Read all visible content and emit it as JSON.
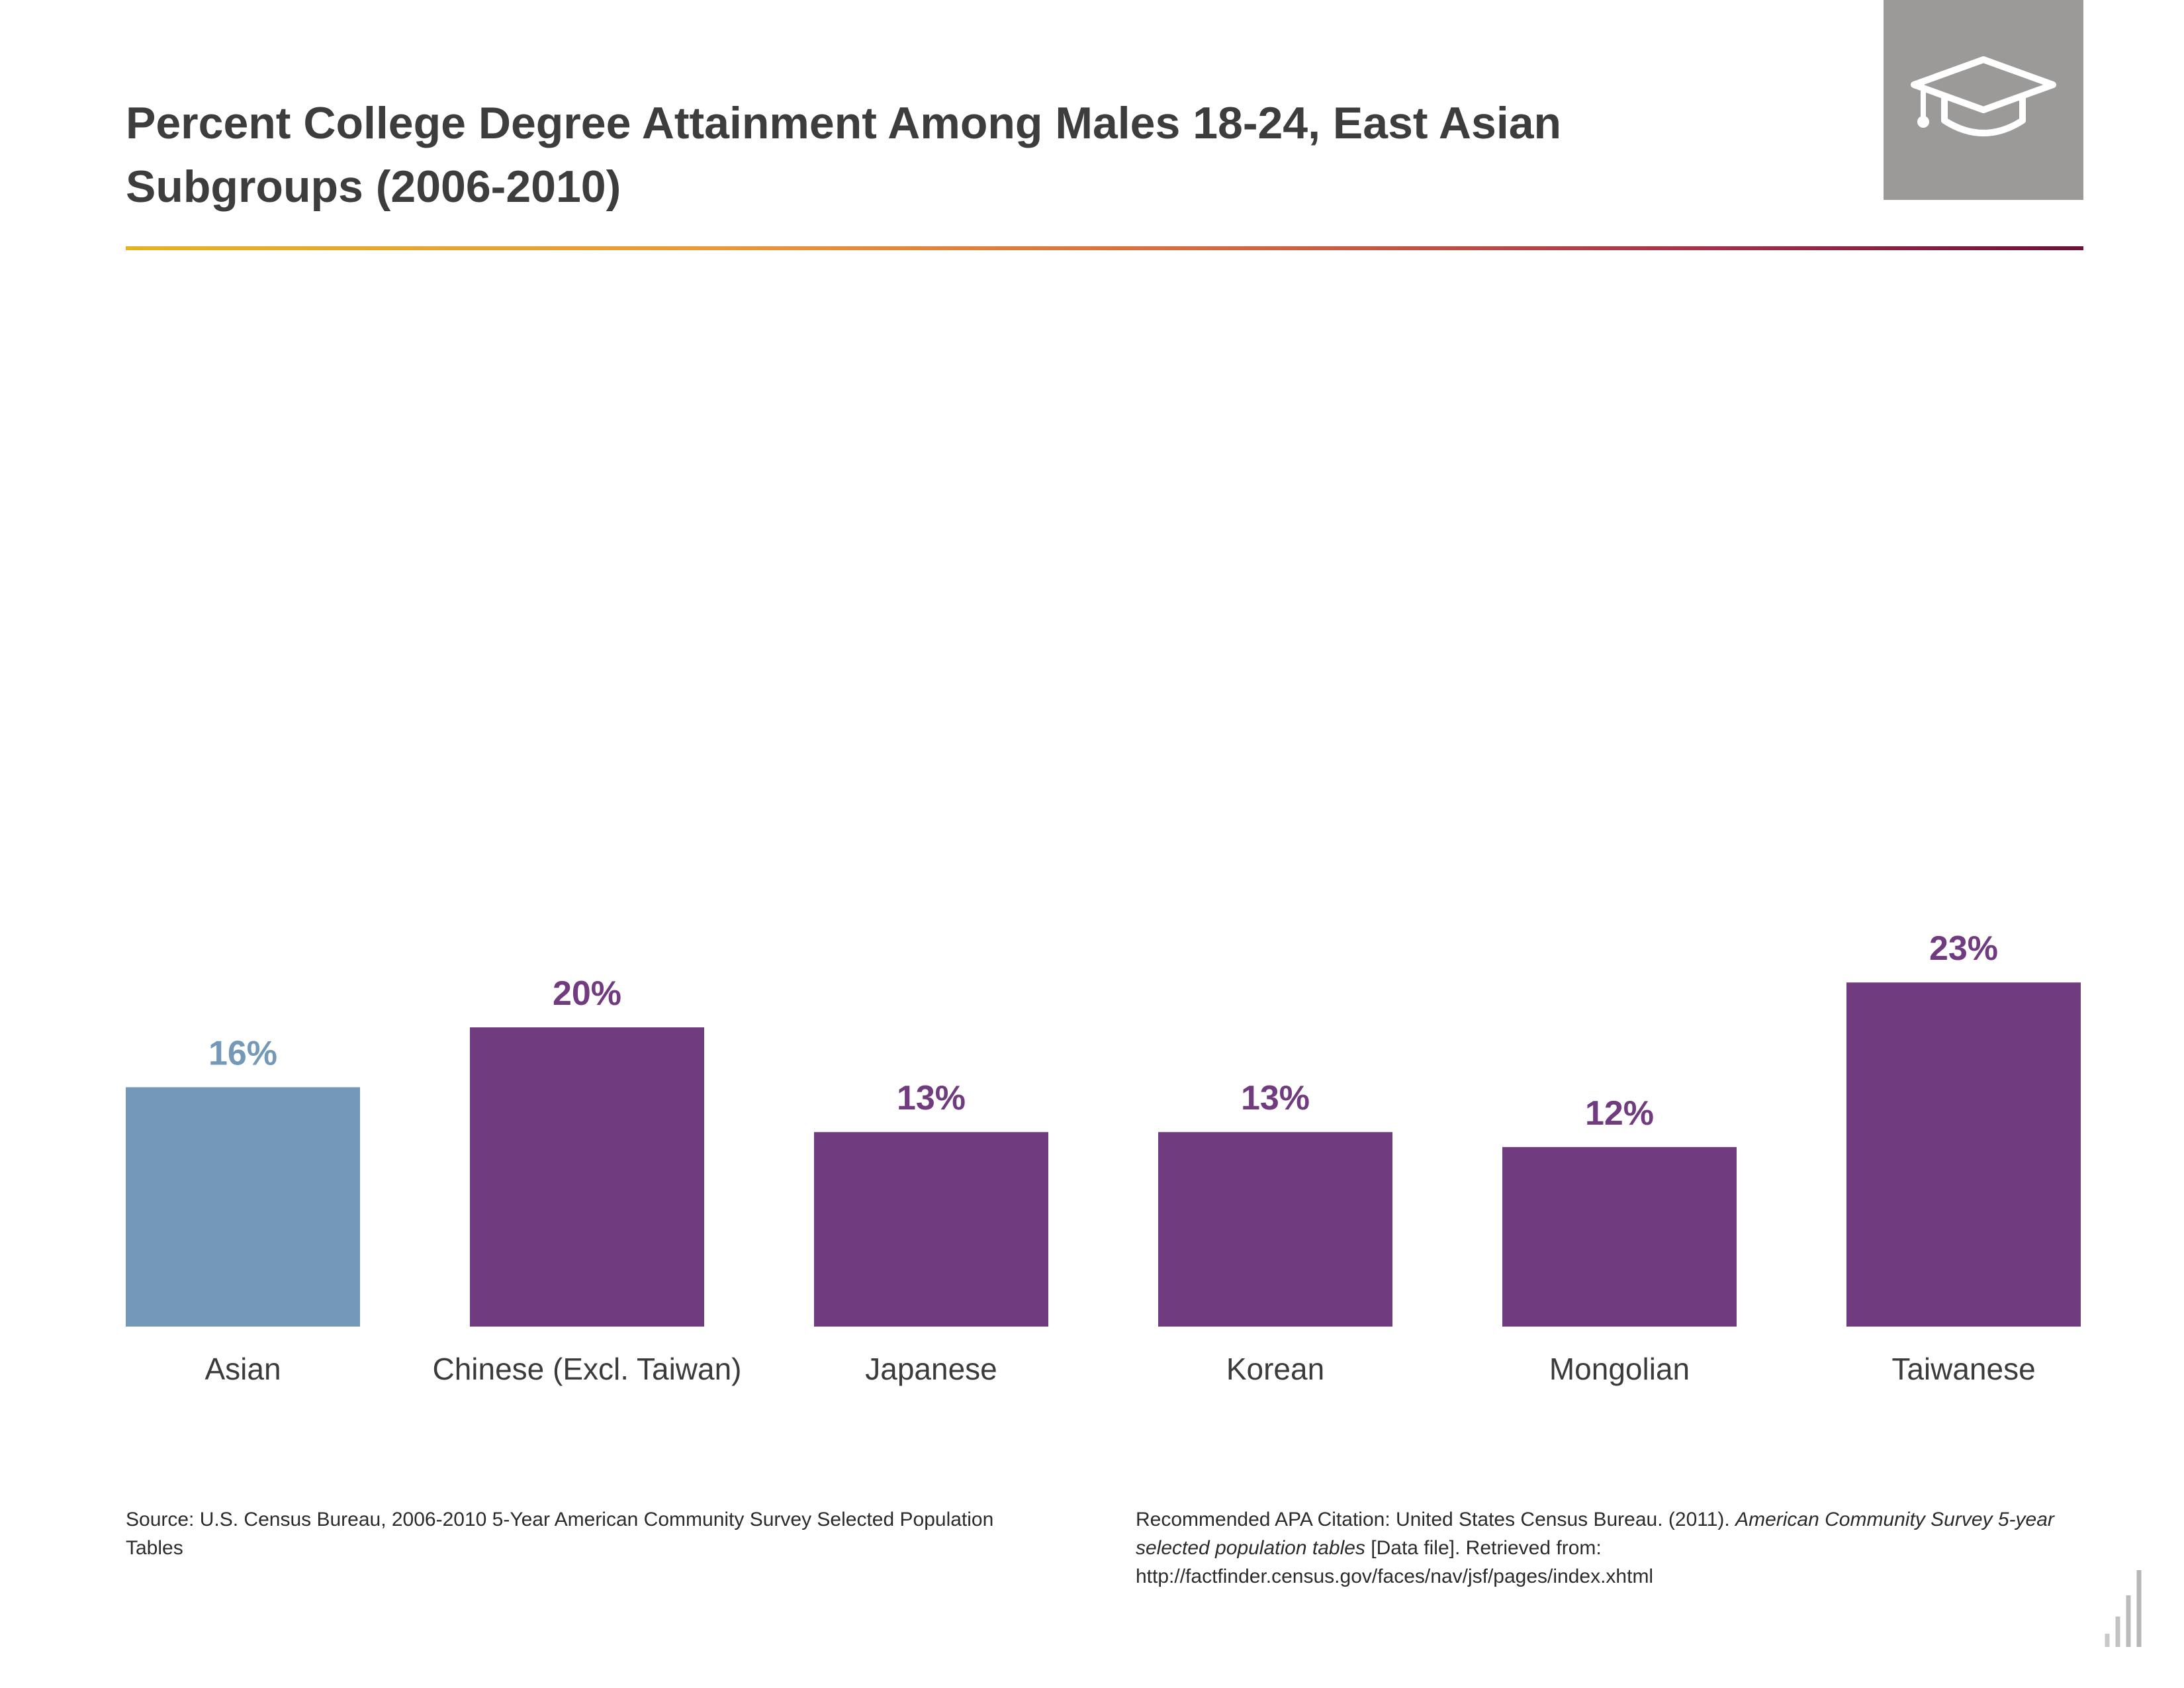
{
  "header": {
    "title_line1": "Percent College Degree Attainment Among Males 18-24, East Asian",
    "title_line2": "Subgroups (2006-2010)",
    "icon": "graduation-cap-icon"
  },
  "colors": {
    "highlight_bar": "#7398b8",
    "bar": "#713b7f",
    "header_icon_bg": "#9c9a98",
    "rule_gradient": [
      "#e3b324",
      "#e89a3a",
      "#d86a3f",
      "#a8324a",
      "#6b1238"
    ]
  },
  "chart_data": {
    "type": "bar",
    "title": "Percent College Degree Attainment Among Males 18-24, East Asian Subgroups (2006-2010)",
    "xlabel": "",
    "ylabel": "",
    "categories": [
      "Asian",
      "Chinese (Excl. Taiwan)",
      "Japanese",
      "Korean",
      "Mongolian",
      "Taiwanese"
    ],
    "values": [
      16,
      20,
      13,
      13,
      12,
      23
    ],
    "value_labels": [
      "16%",
      "20%",
      "13%",
      "13%",
      "12%",
      "23%"
    ],
    "highlight_index": 0,
    "ylim": [
      0,
      100
    ],
    "grid": false,
    "legend": "none"
  },
  "footer": {
    "source": "Source: U.S. Census Bureau, 2006-2010 5-Year American Community Survey Selected Population Tables",
    "citation_prefix": "Recommended APA Citation: United States Census Bureau. (2011). ",
    "citation_italic": "American Community Survey 5-year selected population tables",
    "citation_suffix": " [Data file]. Retrieved from: http://factfinder.census.gov/faces/nav/jsf/pages/index.xhtml",
    "corner_icon": "bar-chart-logo-icon"
  }
}
